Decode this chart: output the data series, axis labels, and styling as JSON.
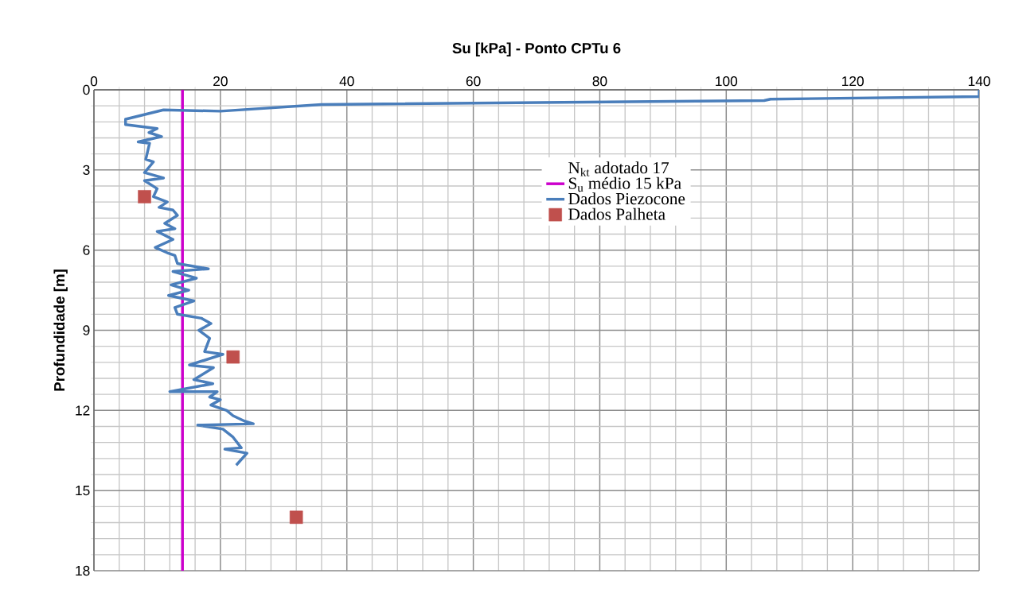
{
  "chart_data": {
    "type": "line",
    "title": "**Su [kPa] - Ponto CPTu 6**",
    "ylabel": "**Profundidade [m]**",
    "legend_title": "N$_{kt}$ adotado 17",
    "xlim": [
      0,
      140
    ],
    "xticks": [
      0,
      20,
      40,
      60,
      80,
      100,
      120,
      140
    ],
    "ylim": [
      18,
      0
    ],
    "yticks": [
      0,
      3,
      6,
      9,
      12,
      15,
      18
    ],
    "grid": true,
    "legend": "top",
    "series": [
      {
        "name": "S$_{u}$ médio 15 kPa",
        "color": "#cc00cc",
        "marker": "none",
        "x": [
          14,
          14
        ],
        "values": [
          0,
          18
        ]
      },
      {
        "name": "Dados Piezocone",
        "color": "#4a7ebb",
        "marker": "none",
        "x": [
          140,
          140,
          107,
          106,
          36,
          20,
          11,
          5,
          5,
          10,
          8.7,
          10.7,
          7,
          8.8,
          8.2,
          9.4,
          8,
          11,
          8,
          10,
          9.4,
          11.6,
          10.3,
          12.5,
          13.2,
          11.2,
          12.8,
          10,
          12.5,
          9.7,
          11.6,
          12.8,
          13.2,
          18.1,
          12.5,
          16.2,
          12.2,
          15,
          11.8,
          15.8,
          12.8,
          13.2,
          17,
          18.5,
          16.6,
          18.3,
          17.5,
          20.4,
          15.1,
          18.9,
          15.8,
          18.8,
          12,
          19.5,
          18.3,
          20,
          18.5,
          21,
          22,
          23.8,
          25.2,
          16.4,
          20.4,
          22,
          23.3,
          20.7,
          24.2,
          22.5
        ],
        "values": [
          0,
          0.25,
          0.35,
          0.4,
          0.55,
          0.8,
          0.75,
          1.1,
          1.3,
          1.45,
          1.6,
          1.75,
          1.95,
          2.0,
          2.6,
          2.7,
          3.1,
          3.3,
          3.4,
          3.7,
          4.0,
          4.2,
          4.4,
          4.5,
          4.7,
          5.0,
          5.2,
          5.3,
          5.6,
          5.9,
          6.1,
          6.2,
          6.5,
          6.7,
          6.8,
          7.05,
          7.3,
          7.5,
          7.7,
          7.9,
          8.15,
          8.4,
          8.55,
          8.75,
          9.0,
          9.3,
          9.8,
          9.9,
          10.3,
          10.4,
          10.85,
          11.0,
          11.3,
          11.3,
          11.5,
          11.6,
          11.8,
          12.0,
          12.2,
          12.4,
          12.5,
          12.55,
          12.7,
          13.0,
          13.4,
          13.45,
          13.6,
          14.05
        ]
      },
      {
        "name": "Dados Palheta",
        "type": "scatter",
        "color": "#c0504d",
        "marker": "square",
        "x": [
          8,
          22,
          32
        ],
        "values": [
          4,
          10,
          16
        ]
      }
    ]
  }
}
